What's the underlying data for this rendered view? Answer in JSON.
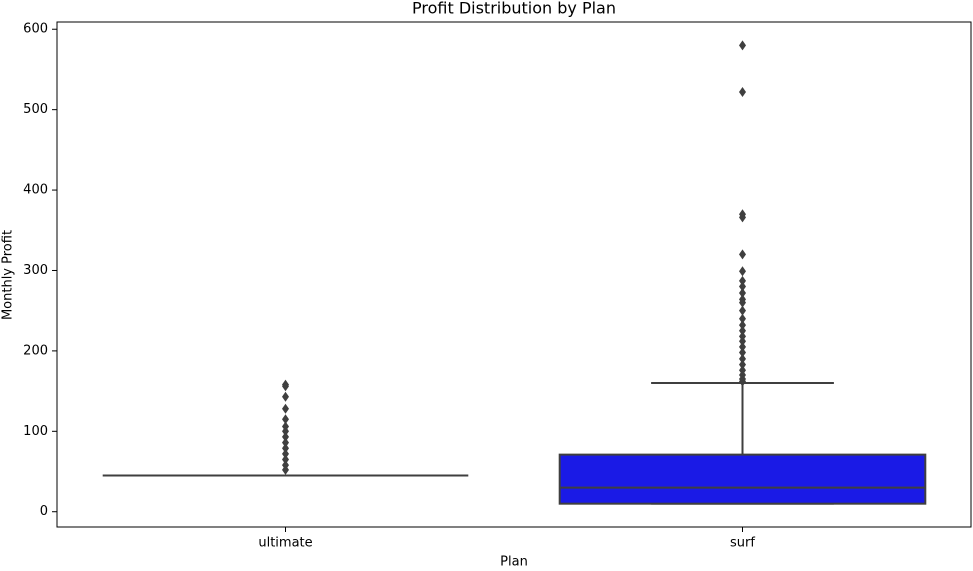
{
  "chart_data": {
    "type": "box",
    "title": "Profit Distribution by Plan",
    "xlabel": "Plan",
    "ylabel": "Monthly Profit",
    "categories": [
      "ultimate",
      "surf"
    ],
    "color": "#1a1ae6",
    "boxes": [
      {
        "whislo": 45,
        "q1": 45,
        "median": 45,
        "q3": 45,
        "whishi": 45,
        "fliers": [
          158,
          156,
          143,
          128,
          115,
          106,
          100,
          93,
          86,
          79,
          72,
          65,
          58,
          52
        ]
      },
      {
        "whislo": 10,
        "q1": 10,
        "median": 30,
        "q3": 71,
        "whishi": 160,
        "fliers": [
          580,
          522,
          370,
          366,
          320,
          299,
          287,
          280,
          272,
          264,
          260,
          250,
          240,
          232,
          225,
          218,
          212,
          205,
          198,
          190,
          183,
          176,
          170,
          165,
          162
        ]
      }
    ],
    "ylim": [
      -19,
      609
    ],
    "yticks": [
      0,
      100,
      200,
      300,
      400,
      500,
      600
    ]
  }
}
